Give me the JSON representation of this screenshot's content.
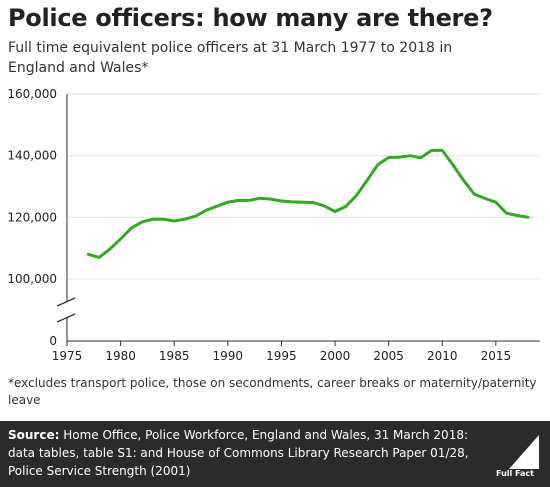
{
  "title": "Police officers: how many are there?",
  "subtitle": "Full time equivalent police officers at 31 March 1977 to 2018 in England and Wales*",
  "footnote": "*excludes transport police, those on secondments, career breaks or maternity/paternity leave",
  "source": {
    "label": "Source:",
    "text": " Home Office, Police Workforce, England and Wales, 31 March 2018: data tables, table S1: and House of Commons Library Research Paper 01/28, Police Service Strength (2001)"
  },
  "logo": {
    "text": "Full Fact",
    "icon": "full-fact-logo"
  },
  "colors": {
    "line": "#33aa22",
    "axis": "#333333",
    "grid": "#e6e6e6",
    "source_bg": "#2b2b2b"
  },
  "chart_data": {
    "type": "line",
    "title": "Police officers: how many are there?",
    "xlabel": "",
    "ylabel": "",
    "xlim": [
      1975,
      2018
    ],
    "x_ticks": [
      "1975",
      "1980",
      "1985",
      "1990",
      "1995",
      "2000",
      "2005",
      "2010",
      "2015"
    ],
    "y_ticks": [
      "0",
      "100,000",
      "120,000",
      "140,000",
      "160,000"
    ],
    "y_axis_break": true,
    "upper_ylim": [
      100000,
      160000
    ],
    "grid": "horizontal",
    "legend": "none",
    "series": [
      {
        "x": [
          1977,
          1978,
          1979,
          1980,
          1981,
          1982,
          1983,
          1984,
          1985,
          1986,
          1987,
          1988,
          1989,
          1990,
          1991,
          1992,
          1993,
          1994,
          1995,
          1996,
          1997,
          1998,
          1999,
          2000,
          2001,
          2002,
          2003,
          2004,
          2005,
          2006,
          2007,
          2008,
          2009,
          2010,
          2011,
          2012,
          2013,
          2014,
          2015,
          2016,
          2017,
          2018
        ],
        "values": [
          108000,
          107000,
          109700,
          113000,
          116500,
          118500,
          119400,
          119400,
          118800,
          119400,
          120400,
          122300,
          123600,
          124900,
          125500,
          125500,
          126200,
          125900,
          125300,
          125000,
          124900,
          124800,
          123700,
          121900,
          123500,
          127100,
          132000,
          137100,
          139400,
          139500,
          140000,
          139300,
          141700,
          141700,
          137000,
          131900,
          127500,
          126100,
          124900,
          121300,
          120600,
          120000
        ]
      }
    ]
  }
}
